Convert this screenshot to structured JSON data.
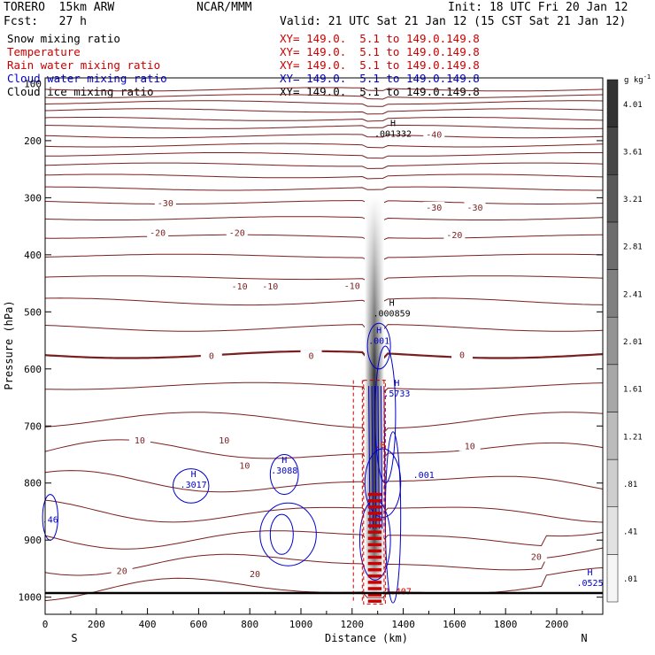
{
  "header": {
    "model": "TORERO  15km ARW",
    "org": "NCAR/MMM",
    "init": "Init: 18 UTC Fri 20 Jan 12",
    "fcst": "Fcst:   27 h",
    "valid": "Valid: 21 UTC Sat 21 Jan 12 (15 CST Sat 21 Jan 12)"
  },
  "legend": [
    {
      "name": "Snow mixing ratio",
      "xy": "",
      "color": "#000000"
    },
    {
      "name": "Temperature",
      "xy": "XY= 149.0.  5.1 to 149.0.149.8",
      "color": "#cc0000"
    },
    {
      "name": "Rain water mixing ratio",
      "xy": "XY= 149.0.  5.1 to 149.0.149.8",
      "color": "#cc0000"
    },
    {
      "name": "Cloud water mixing ratio",
      "xy": "XY= 149.0.  5.1 to 149.0.149.8",
      "color": "#0000cc"
    },
    {
      "name": "Cloud ice mixing ratio",
      "xy": "XY= 149.0.  5.1 to 149.0.149.8",
      "color": "#000000"
    }
  ],
  "chart_data": {
    "type": "contour",
    "xlabel": "Distance (km)",
    "ylabel": "Pressure (hPa)",
    "xlim": [
      0,
      2180
    ],
    "ylim": [
      1030,
      90
    ],
    "x_ticks": [
      0,
      200,
      400,
      600,
      800,
      1000,
      1200,
      1400,
      1600,
      1800,
      2000
    ],
    "y_ticks": [
      200,
      300,
      400,
      500,
      600,
      700,
      800,
      900,
      1000
    ],
    "y_top_label": "100",
    "x_ends": {
      "left": "S",
      "right": "N"
    },
    "colorbar": {
      "unit": "g kg-1",
      "ticks": [
        ".01",
        ".41",
        ".81",
        "1.21",
        "1.61",
        "2.01",
        "2.41",
        "2.81",
        "3.21",
        "3.61",
        "4.01"
      ]
    },
    "contour_labels": [
      {
        "text": "-40",
        "x": 1520,
        "p": 190
      },
      {
        "text": "-30",
        "x": 470,
        "p": 310
      },
      {
        "text": "-30",
        "x": 1520,
        "p": 318
      },
      {
        "text": "-30",
        "x": 1680,
        "p": 318
      },
      {
        "text": "-20",
        "x": 440,
        "p": 362
      },
      {
        "text": "-20",
        "x": 750,
        "p": 362
      },
      {
        "text": "-20",
        "x": 1600,
        "p": 366
      },
      {
        "text": "-10",
        "x": 760,
        "p": 456
      },
      {
        "text": "-10",
        "x": 880,
        "p": 456
      },
      {
        "text": "-10",
        "x": 1200,
        "p": 455
      },
      {
        "text": "0",
        "x": 650,
        "p": 578
      },
      {
        "text": "0",
        "x": 1040,
        "p": 578
      },
      {
        "text": "0",
        "x": 1630,
        "p": 576
      },
      {
        "text": "10",
        "x": 370,
        "p": 726
      },
      {
        "text": "10",
        "x": 700,
        "p": 726
      },
      {
        "text": "10",
        "x": 780,
        "p": 770
      },
      {
        "text": "10",
        "x": 1660,
        "p": 736
      },
      {
        "text": "20",
        "x": 300,
        "p": 955
      },
      {
        "text": "20",
        "x": 820,
        "p": 960
      },
      {
        "text": "20",
        "x": 1920,
        "p": 930
      }
    ],
    "extrema": [
      {
        "mark": "H",
        "value": ".001332",
        "x": 1360,
        "p": 190,
        "color": "#000000"
      },
      {
        "mark": "H",
        "value": ".000859",
        "x": 1355,
        "p": 505,
        "color": "#000000"
      },
      {
        "mark": "H",
        "value": ".001",
        "x": 1305,
        "p": 553,
        "color": "#0000cc"
      },
      {
        "mark": "H",
        "value": ".5733",
        "x": 1375,
        "p": 645,
        "color": "#0000cc"
      },
      {
        "mark": "H",
        "value": ".3088",
        "x": 935,
        "p": 780,
        "color": "#0000cc"
      },
      {
        "mark": "H",
        "value": ".3017",
        "x": 580,
        "p": 805,
        "color": "#0000cc"
      },
      {
        "mark": "H",
        "value": ".0525",
        "x": 2130,
        "p": 977,
        "color": "#0000cc"
      },
      {
        "mark": "",
        "value": ".46",
        "x": 20,
        "p": 866,
        "color": "#0000cc"
      },
      {
        "mark": "",
        "value": ".001",
        "x": 1480,
        "p": 788,
        "color": "#0000cc"
      },
      {
        "mark": "",
        "value": "1.407",
        "x": 1380,
        "p": 992,
        "color": "#cc0000"
      },
      {
        "mark": "",
        "value": ".0",
        "x": 1310,
        "p": 735,
        "color": "#cc0000"
      }
    ]
  }
}
